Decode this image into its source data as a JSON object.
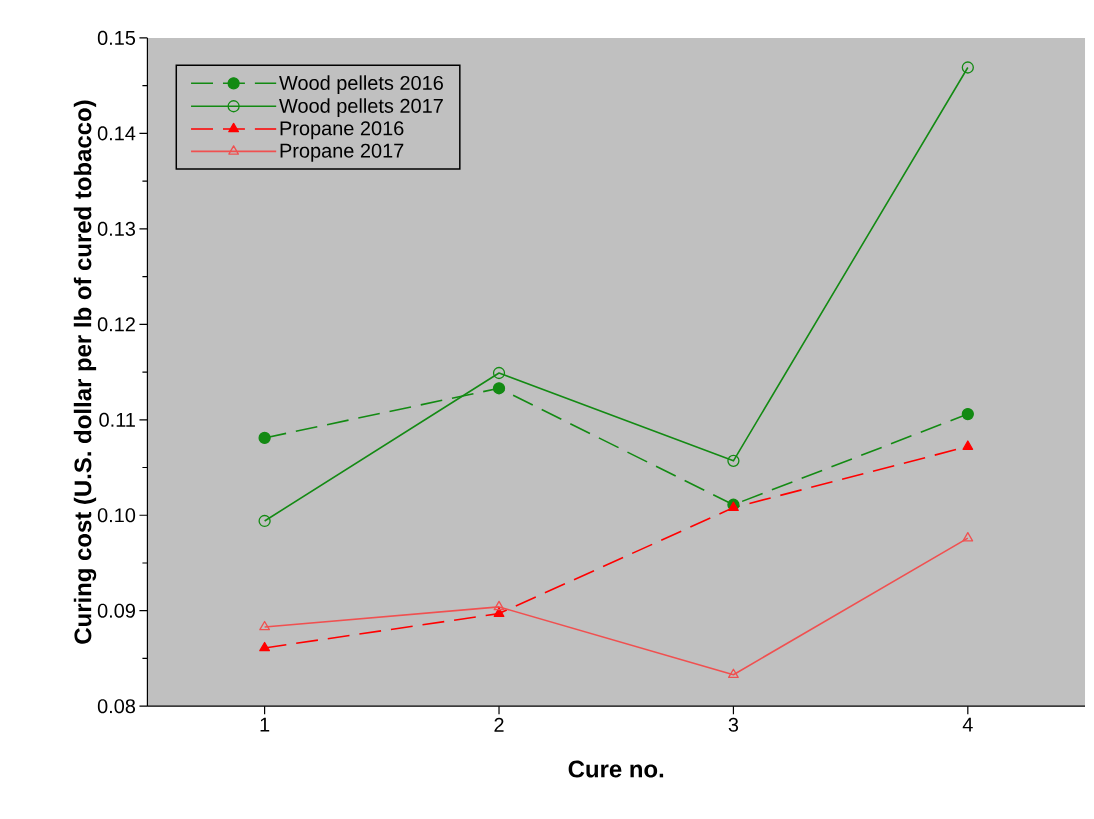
{
  "chart_data": {
    "type": "line",
    "xlabel": "Cure no.",
    "ylabel": "Curing cost (U.S. dollar per lb of cured tobacco)",
    "x": [
      1,
      2,
      3,
      4
    ],
    "xlim": [
      0.5,
      4.5
    ],
    "xticks": [
      1,
      2,
      3,
      4
    ],
    "ylim": [
      0.08,
      0.15
    ],
    "yticks": [
      0.08,
      0.09,
      {
        "value": 0.1,
        "label": "0.10"
      },
      0.11,
      0.12,
      0.13,
      0.14,
      0.15
    ],
    "grid": false,
    "legend": "top left",
    "series": [
      {
        "name": "Wood pellets 2016",
        "color": "#138a13",
        "marker": "circle",
        "line_style": "dashed",
        "values": [
          0.1081,
          0.1133,
          0.1011,
          0.1106
        ]
      },
      {
        "name": "Wood pellets 2017",
        "color": "#138a13",
        "marker": "circle",
        "line_style": "solid",
        "values": [
          0.0994,
          0.1149,
          0.1057,
          0.1469
        ]
      },
      {
        "name": "Propane 2016",
        "color": "#ff0000",
        "marker": "triangle",
        "line_style": "dashed",
        "values": [
          0.0861,
          0.0897,
          0.1008,
          0.1072
        ]
      },
      {
        "name": "Propane 2017",
        "color": "#f05050",
        "marker": "triangle",
        "line_style": "solid",
        "values": [
          0.0883,
          0.0904,
          0.0833,
          0.0976
        ]
      }
    ]
  }
}
